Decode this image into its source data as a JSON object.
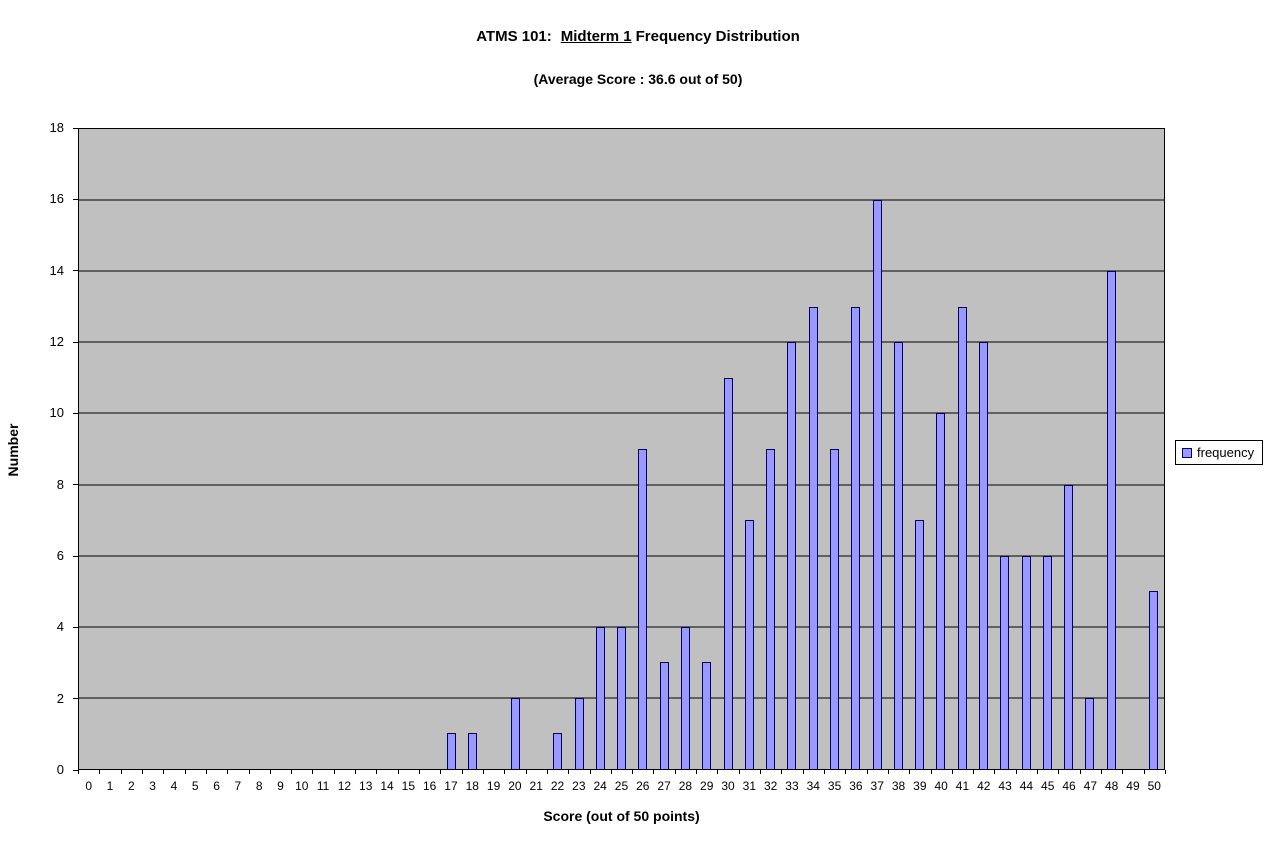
{
  "title": {
    "part1": "ATMS 101:",
    "part2": "Midterm 1",
    "part3": "Frequency Distribution"
  },
  "subtitle": "(Average Score : 36.6 out of 50)",
  "legend": {
    "label": "frequency"
  },
  "chart_data": {
    "type": "bar",
    "title": "ATMS 101: Midterm 1 Frequency Distribution",
    "subtitle": "(Average Score : 36.6 out of 50)",
    "xlabel": "Score (out of 50 points)",
    "ylabel": "Number",
    "ylim": [
      0,
      18
    ],
    "ytick_step": 2,
    "grid": true,
    "legend_position": "right",
    "categories": [
      0,
      1,
      2,
      3,
      4,
      5,
      6,
      7,
      8,
      9,
      10,
      11,
      12,
      13,
      14,
      15,
      16,
      17,
      18,
      19,
      20,
      21,
      22,
      23,
      24,
      25,
      26,
      27,
      28,
      29,
      30,
      31,
      32,
      33,
      34,
      35,
      36,
      37,
      38,
      39,
      40,
      41,
      42,
      43,
      44,
      45,
      46,
      47,
      48,
      49,
      50
    ],
    "series": [
      {
        "name": "frequency",
        "values": [
          0,
          0,
          0,
          0,
          0,
          0,
          0,
          0,
          0,
          0,
          0,
          0,
          0,
          0,
          0,
          0,
          0,
          1,
          1,
          0,
          2,
          0,
          1,
          2,
          4,
          4,
          9,
          3,
          4,
          3,
          11,
          7,
          9,
          12,
          13,
          9,
          13,
          16,
          12,
          7,
          10,
          13,
          12,
          6,
          6,
          6,
          8,
          2,
          14,
          0,
          5
        ]
      }
    ],
    "colors": {
      "bar_fill": "#9999ff",
      "bar_border": "#000066",
      "plot_bg": "#c0c0c0",
      "grid": "#000000"
    }
  }
}
